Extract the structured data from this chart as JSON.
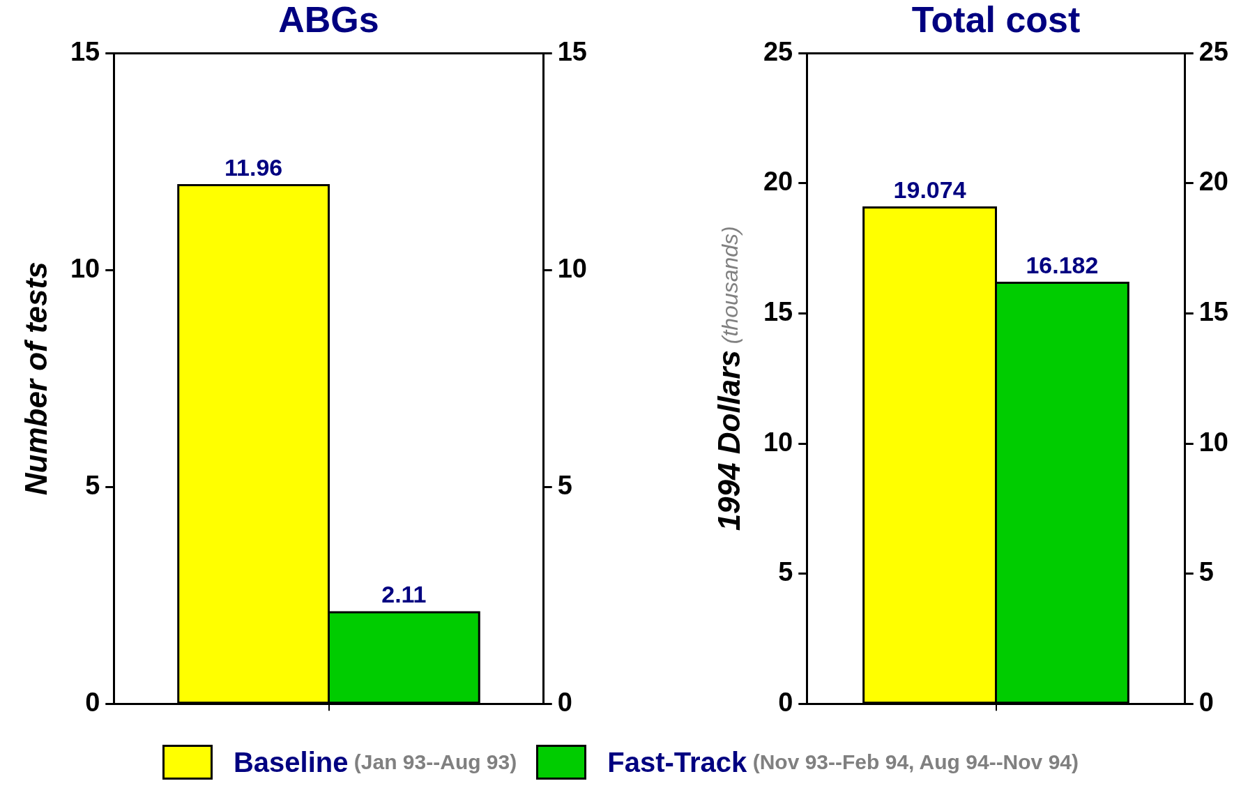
{
  "chart_data": [
    {
      "type": "bar",
      "title": "ABGs",
      "ylabel": "Number of tests",
      "categories": [
        null
      ],
      "series": [
        {
          "name": "Baseline (Jan 93--Aug 93)",
          "color": "#ffff00",
          "values": [
            11.96
          ]
        },
        {
          "name": "Fast-Track (Nov 93--Feb 94, Aug 94--Nov 94)",
          "color": "#00cc00",
          "values": [
            2.11
          ]
        }
      ],
      "ylim": [
        0,
        15
      ],
      "yticks": [
        0,
        5,
        10,
        15
      ],
      "y2lim": [
        0,
        15
      ],
      "y2ticks": [
        0,
        5,
        10,
        15
      ],
      "data_labels": true,
      "grid": false,
      "legend": "bottom"
    },
    {
      "type": "bar",
      "title": "Total cost",
      "ylabel": "1994 Dollars (thousands)",
      "categories": [
        null
      ],
      "series": [
        {
          "color": "#ffff00",
          "values": [
            19.074
          ]
        },
        {
          "color": "#00cc00",
          "values": [
            16.182
          ]
        }
      ],
      "ylim": [
        0,
        25
      ],
      "yticks": [
        0,
        5,
        10,
        15,
        20,
        25
      ],
      "y2lim": [
        0,
        25
      ],
      "y2ticks": [
        0,
        5,
        10,
        15,
        20,
        25
      ],
      "data_labels": true,
      "grid": false
    }
  ]
}
